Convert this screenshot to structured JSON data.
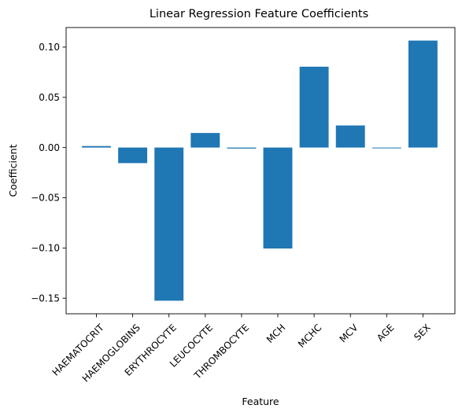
{
  "chart_data": {
    "type": "bar",
    "title": "Linear Regression Feature Coefficients",
    "xlabel": "Feature",
    "ylabel": "Coefficient",
    "categories": [
      "HAEMATOCRIT",
      "HAEMOGLOBINS",
      "ERYTHROCYTE",
      "LEUCOCYTE",
      "THROMBOCYTE",
      "MCH",
      "MCHC",
      "MCV",
      "AGE",
      "SEX"
    ],
    "values": [
      0.0015,
      -0.0155,
      -0.1525,
      0.0145,
      -0.001,
      -0.1005,
      0.0805,
      0.022,
      -0.0008,
      0.1065
    ],
    "ylim": [
      -0.1655,
      0.1195
    ],
    "yticks": [
      -0.15,
      -0.1,
      -0.05,
      0.0,
      0.05,
      0.1
    ],
    "ytick_labels": [
      "−0.15",
      "−0.10",
      "−0.05",
      "0.00",
      "0.05",
      "0.10"
    ],
    "xtick_rotation": 45,
    "grid": false,
    "legend": "none",
    "bar_color": "#1f77b4"
  }
}
